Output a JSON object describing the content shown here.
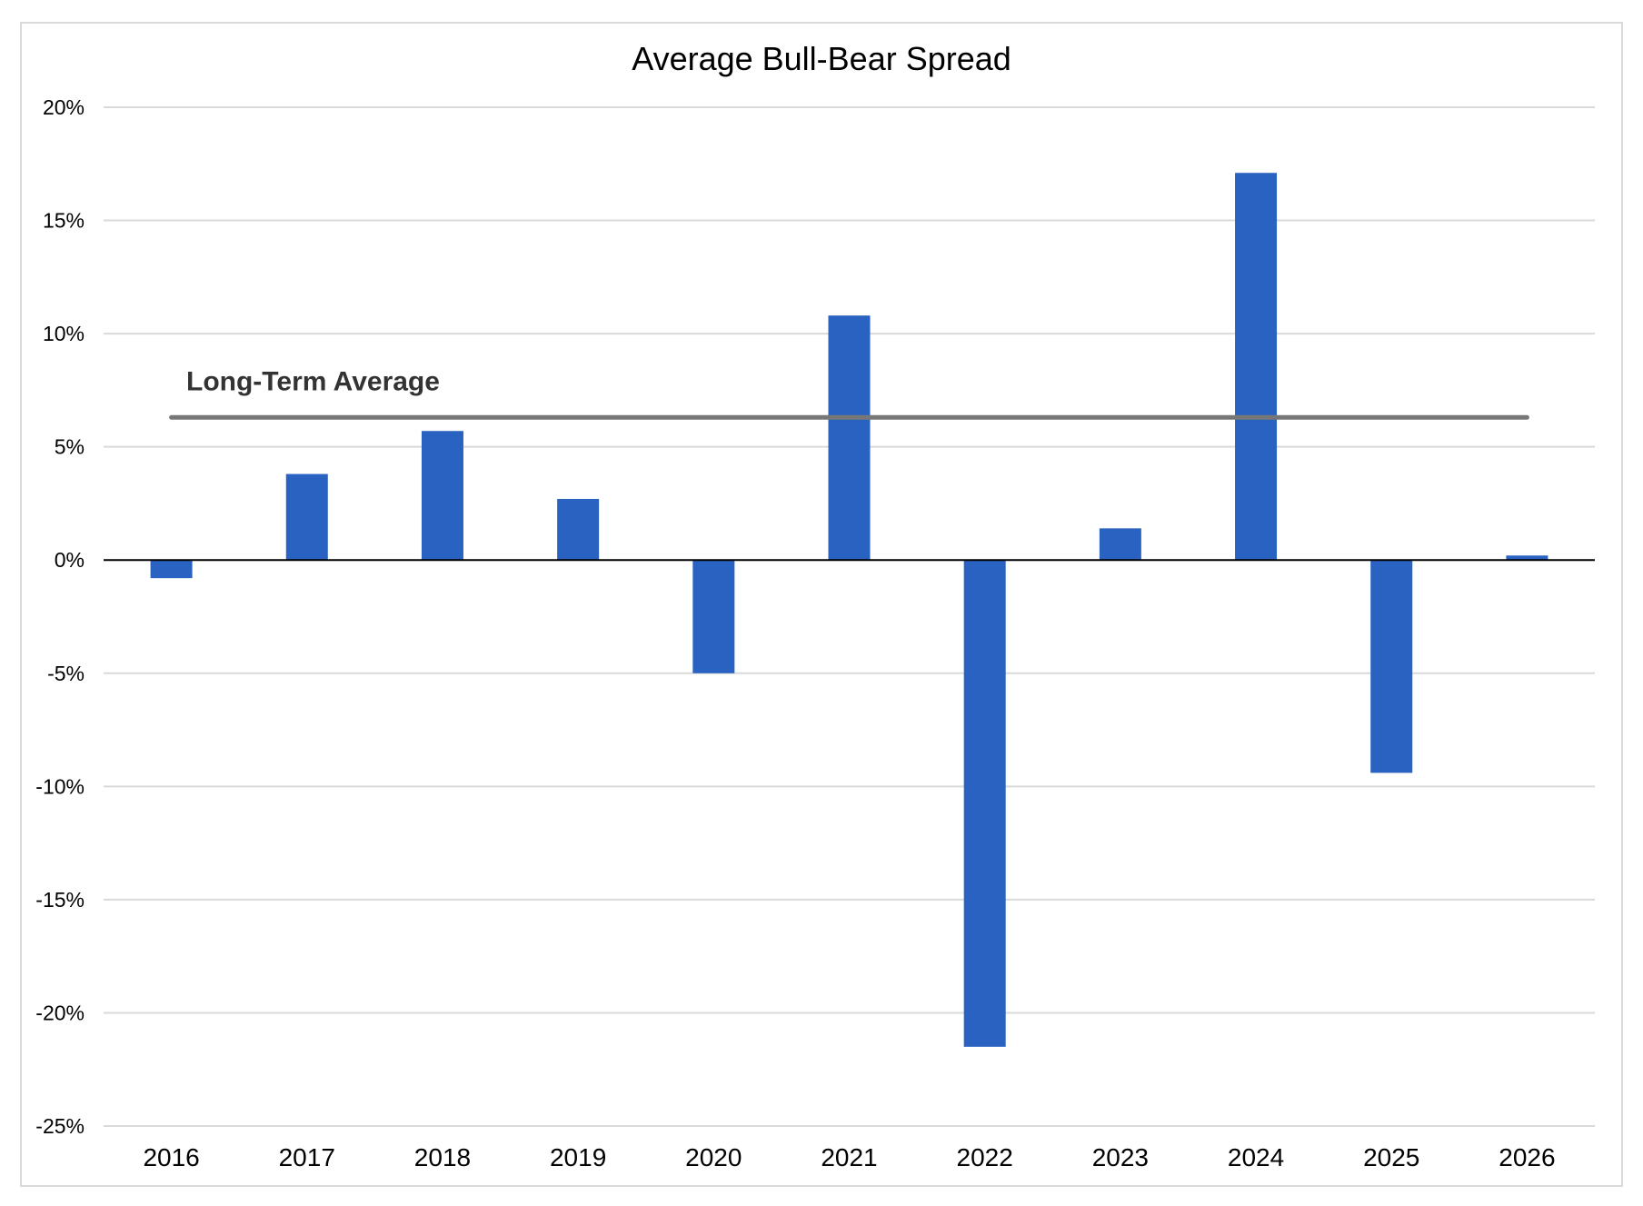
{
  "chart_data": {
    "type": "bar",
    "title": "Average Bull-Bear Spread",
    "xlabel": "",
    "ylabel": "",
    "categories": [
      "2016",
      "2017",
      "2018",
      "2019",
      "2020",
      "2021",
      "2022",
      "2023",
      "2024",
      "2025",
      "2026"
    ],
    "series": [
      {
        "values": [
          -0.8,
          3.8,
          5.7,
          2.7,
          -5.0,
          10.8,
          -21.5,
          1.4,
          17.1,
          -9.4,
          0.2
        ]
      }
    ],
    "ylim": [
      -25,
      20
    ],
    "y_ticks": [
      20,
      15,
      10,
      5,
      0,
      -5,
      -10,
      -15,
      -20,
      -25
    ],
    "y_tick_labels": [
      "20%",
      "15%",
      "10%",
      "5%",
      "0%",
      "-5%",
      "-10%",
      "-15%",
      "-20%",
      "-25%"
    ],
    "reference_line": {
      "label": "Long-Term Average",
      "value": 6.3
    },
    "grid": true,
    "legend": "none",
    "colors": {
      "bar": "#2962C0",
      "reference_line": "#777777",
      "gridline": "#D9D9D9",
      "zero_line": "#000000",
      "frame": "#D9D9D9"
    }
  }
}
